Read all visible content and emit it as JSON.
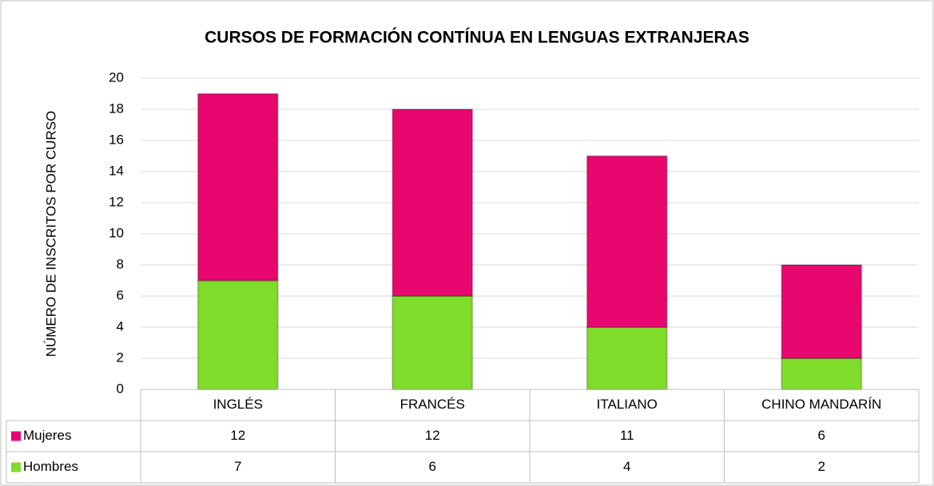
{
  "chart_data": {
    "type": "stacked_bar",
    "title": "CURSOS DE FORMACIÓN CONTÍNUA EN LENGUAS EXTRANJERAS",
    "y_label": "NÚMERO DE INSCRITOS POR CURSO",
    "categories": [
      "INGLÉS",
      "FRANCÉS",
      "ITALIANO",
      "CHINO MANDARÍN"
    ],
    "series": [
      {
        "name": "Mujeres",
        "color": "#e8076f",
        "values": [
          12,
          12,
          11,
          6
        ]
      },
      {
        "name": "Hombres",
        "color": "#7fdc2a",
        "values": [
          7,
          6,
          4,
          2
        ]
      }
    ],
    "ylim": [
      0,
      20
    ],
    "yticks": [
      0,
      2,
      4,
      6,
      8,
      10,
      12,
      14,
      16,
      18,
      20
    ],
    "grid": true,
    "data_table": true
  }
}
